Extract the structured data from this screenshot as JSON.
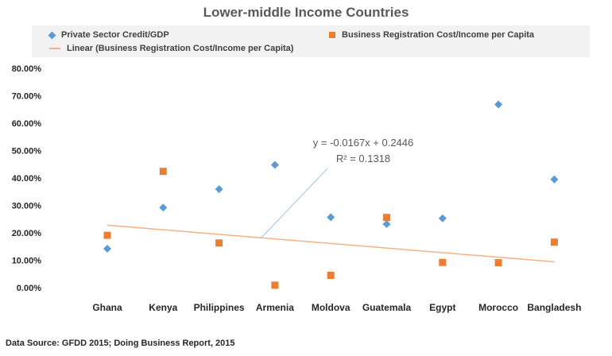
{
  "chart_data": {
    "type": "scatter",
    "title": "Lower-middle Income Countries",
    "categories": [
      "Ghana",
      "Kenya",
      "Philippines",
      "Armenia",
      "Moldova",
      "Guatemala",
      "Egypt",
      "Morocco",
      "Bangladesh"
    ],
    "series": [
      {
        "name": "Private Sector Credit/GDP",
        "marker": "diamond",
        "color": "#5b9bd5",
        "values": [
          0.142,
          0.292,
          0.359,
          0.448,
          0.257,
          0.232,
          0.253,
          0.668,
          0.395
        ]
      },
      {
        "name": "Business Registration Cost/Income per Capita",
        "marker": "square",
        "color": "#ed7d31",
        "values": [
          0.191,
          0.424,
          0.163,
          0.009,
          0.045,
          0.256,
          0.092,
          0.091,
          0.166
        ]
      }
    ],
    "trendline": {
      "name": "Linear (Business Registration Cost/Income per Capita)",
      "color": "#f4b183",
      "slope": -0.0167,
      "intercept": 0.2446,
      "equation": "y = -0.0167x + 0.2446",
      "r_squared": "R² = 0.1318"
    },
    "ylim": [
      0,
      0.8
    ],
    "yticks": [
      "0.00%",
      "10.00%",
      "20.00%",
      "30.00%",
      "40.00%",
      "50.00%",
      "60.00%",
      "70.00%",
      "80.00%"
    ],
    "xlabel": "",
    "ylabel": "",
    "grid": false,
    "legend_position": "top"
  },
  "legend": {
    "series1": "Private Sector Credit/GDP",
    "series2": "Business Registration Cost/Income per Capita",
    "trend": "Linear (Business Registration Cost/Income per Capita)"
  },
  "footer": {
    "source": "Data Source: GFDD 2015; Doing Business Report, 2015"
  }
}
